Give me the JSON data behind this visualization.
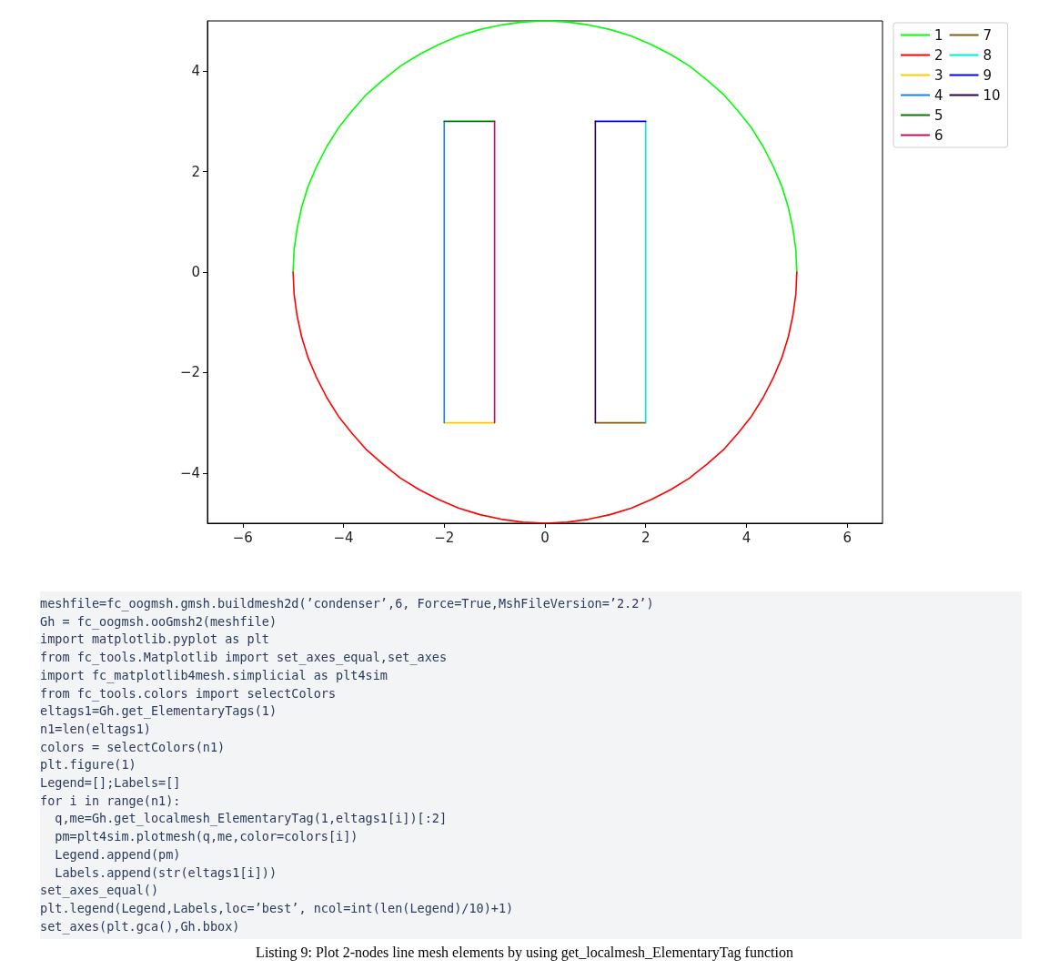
{
  "chart_data": {
    "type": "line",
    "xlim": [
      -6.7,
      6.7
    ],
    "ylim": [
      -5,
      5
    ],
    "xticks": [
      {
        "value": -6,
        "label": "−6"
      },
      {
        "value": -4,
        "label": "−4"
      },
      {
        "value": -2,
        "label": "−2"
      },
      0,
      2,
      4,
      6
    ],
    "yticks": [
      {
        "value": -4,
        "label": "−4"
      },
      {
        "value": -2,
        "label": "−2"
      },
      0,
      2,
      4
    ],
    "grid": false,
    "legend": "top right",
    "marker": "none",
    "line_style": "solid",
    "series": [
      {
        "name": "1",
        "color": "#00ff00",
        "x": [
          -5,
          -4.98,
          -4.92,
          -4.83,
          -4.7,
          -4.53,
          -4.33,
          -4.1,
          -3.83,
          -3.54,
          -3.21,
          -2.87,
          -2.5,
          -2.11,
          -1.71,
          -1.29,
          -0.87,
          -0.44,
          0,
          0.44,
          0.87,
          1.29,
          1.71,
          2.11,
          2.5,
          2.87,
          3.21,
          3.54,
          3.83,
          4.1,
          4.33,
          4.53,
          4.7,
          4.83,
          4.92,
          4.98,
          5
        ],
        "values": [
          0,
          0.44,
          0.87,
          1.29,
          1.71,
          2.11,
          2.5,
          2.87,
          3.21,
          3.54,
          3.83,
          4.1,
          4.33,
          4.53,
          4.7,
          4.83,
          4.92,
          4.98,
          5,
          4.98,
          4.92,
          4.83,
          4.7,
          4.53,
          4.33,
          4.1,
          3.83,
          3.54,
          3.21,
          2.87,
          2.5,
          2.11,
          1.71,
          1.29,
          0.87,
          0.44,
          0
        ]
      },
      {
        "name": "2",
        "color": "#ff0000",
        "x": [
          -5,
          -4.98,
          -4.92,
          -4.83,
          -4.7,
          -4.53,
          -4.33,
          -4.1,
          -3.83,
          -3.54,
          -3.21,
          -2.87,
          -2.5,
          -2.11,
          -1.71,
          -1.29,
          -0.87,
          -0.44,
          0,
          0.44,
          0.87,
          1.29,
          1.71,
          2.11,
          2.5,
          2.87,
          3.21,
          3.54,
          3.83,
          4.1,
          4.33,
          4.53,
          4.7,
          4.83,
          4.92,
          4.98,
          5
        ],
        "values": [
          0,
          -0.44,
          -0.87,
          -1.29,
          -1.71,
          -2.11,
          -2.5,
          -2.87,
          -3.21,
          -3.54,
          -3.83,
          -4.1,
          -4.33,
          -4.53,
          -4.7,
          -4.83,
          -4.92,
          -4.98,
          -5,
          -4.98,
          -4.92,
          -4.83,
          -4.7,
          -4.53,
          -4.33,
          -4.1,
          -3.83,
          -3.54,
          -3.21,
          -2.87,
          -2.5,
          -2.11,
          -1.71,
          -1.29,
          -0.87,
          -0.44,
          0
        ]
      },
      {
        "name": "3",
        "color": "#ffcc00",
        "x": [
          -2,
          -1
        ],
        "values": [
          -3,
          -3
        ]
      },
      {
        "name": "4",
        "color": "#1a80e6",
        "x": [
          -2,
          -2
        ],
        "values": [
          -3,
          3
        ]
      },
      {
        "name": "5",
        "color": "#007a00",
        "x": [
          -2,
          -1
        ],
        "values": [
          3,
          3
        ]
      },
      {
        "name": "6",
        "color": "#c01060",
        "x": [
          -1,
          -1
        ],
        "values": [
          3,
          -3
        ]
      },
      {
        "name": "7",
        "color": "#8b5a10",
        "x": [
          1,
          2
        ],
        "values": [
          -3,
          -3
        ]
      },
      {
        "name": "8",
        "color": "#00f0d0",
        "x": [
          2,
          2
        ],
        "values": [
          -3,
          3
        ]
      },
      {
        "name": "9",
        "color": "#0000ff",
        "x": [
          1,
          2
        ],
        "values": [
          3,
          3
        ]
      },
      {
        "name": "10",
        "color": "#2a0050",
        "x": [
          1,
          1
        ],
        "values": [
          -3,
          3
        ]
      }
    ],
    "annotations": [
      "meshfile=fc_oogmsh.gmsh.buildmesh2d(’condenser’,6, Force=True,MshFileVersion=’2.2’)",
      "Gh = fc_oogmsh.ooGmsh2(meshfile)",
      "import matplotlib.pyplot as plt",
      "from fc_tools.Matplotlib import set_axes_equal,set_axes",
      "import fc_matplotlib4mesh.simplicial as plt4sim",
      "from fc_tools.colors import selectColors",
      "eltags1=Gh.get_ElementaryTags(1)",
      "n1=len(eltags1)",
      "colors = selectColors(n1)",
      "plt.figure(1)",
      "Legend=[];Labels=[]",
      "for i in range(n1):",
      "  q,me=Gh.get_localmesh_ElementaryTag(1,eltags1[i])[:2]",
      "  pm=plt4sim.plotmesh(q,me,color=colors[i])",
      "  Legend.append(pm)",
      "  Labels.append(str(eltags1[i]))",
      "set_axes_equal()",
      "plt.legend(Legend,Labels,loc=’best’, ncol=int(len(Legend)/10)+1)",
      "set_axes(plt.gca(),Gh.bbox)",
      "Listing 9: Plot 2-nodes line mesh elements by using get_localmesh_ElementaryTag function"
    ]
  }
}
